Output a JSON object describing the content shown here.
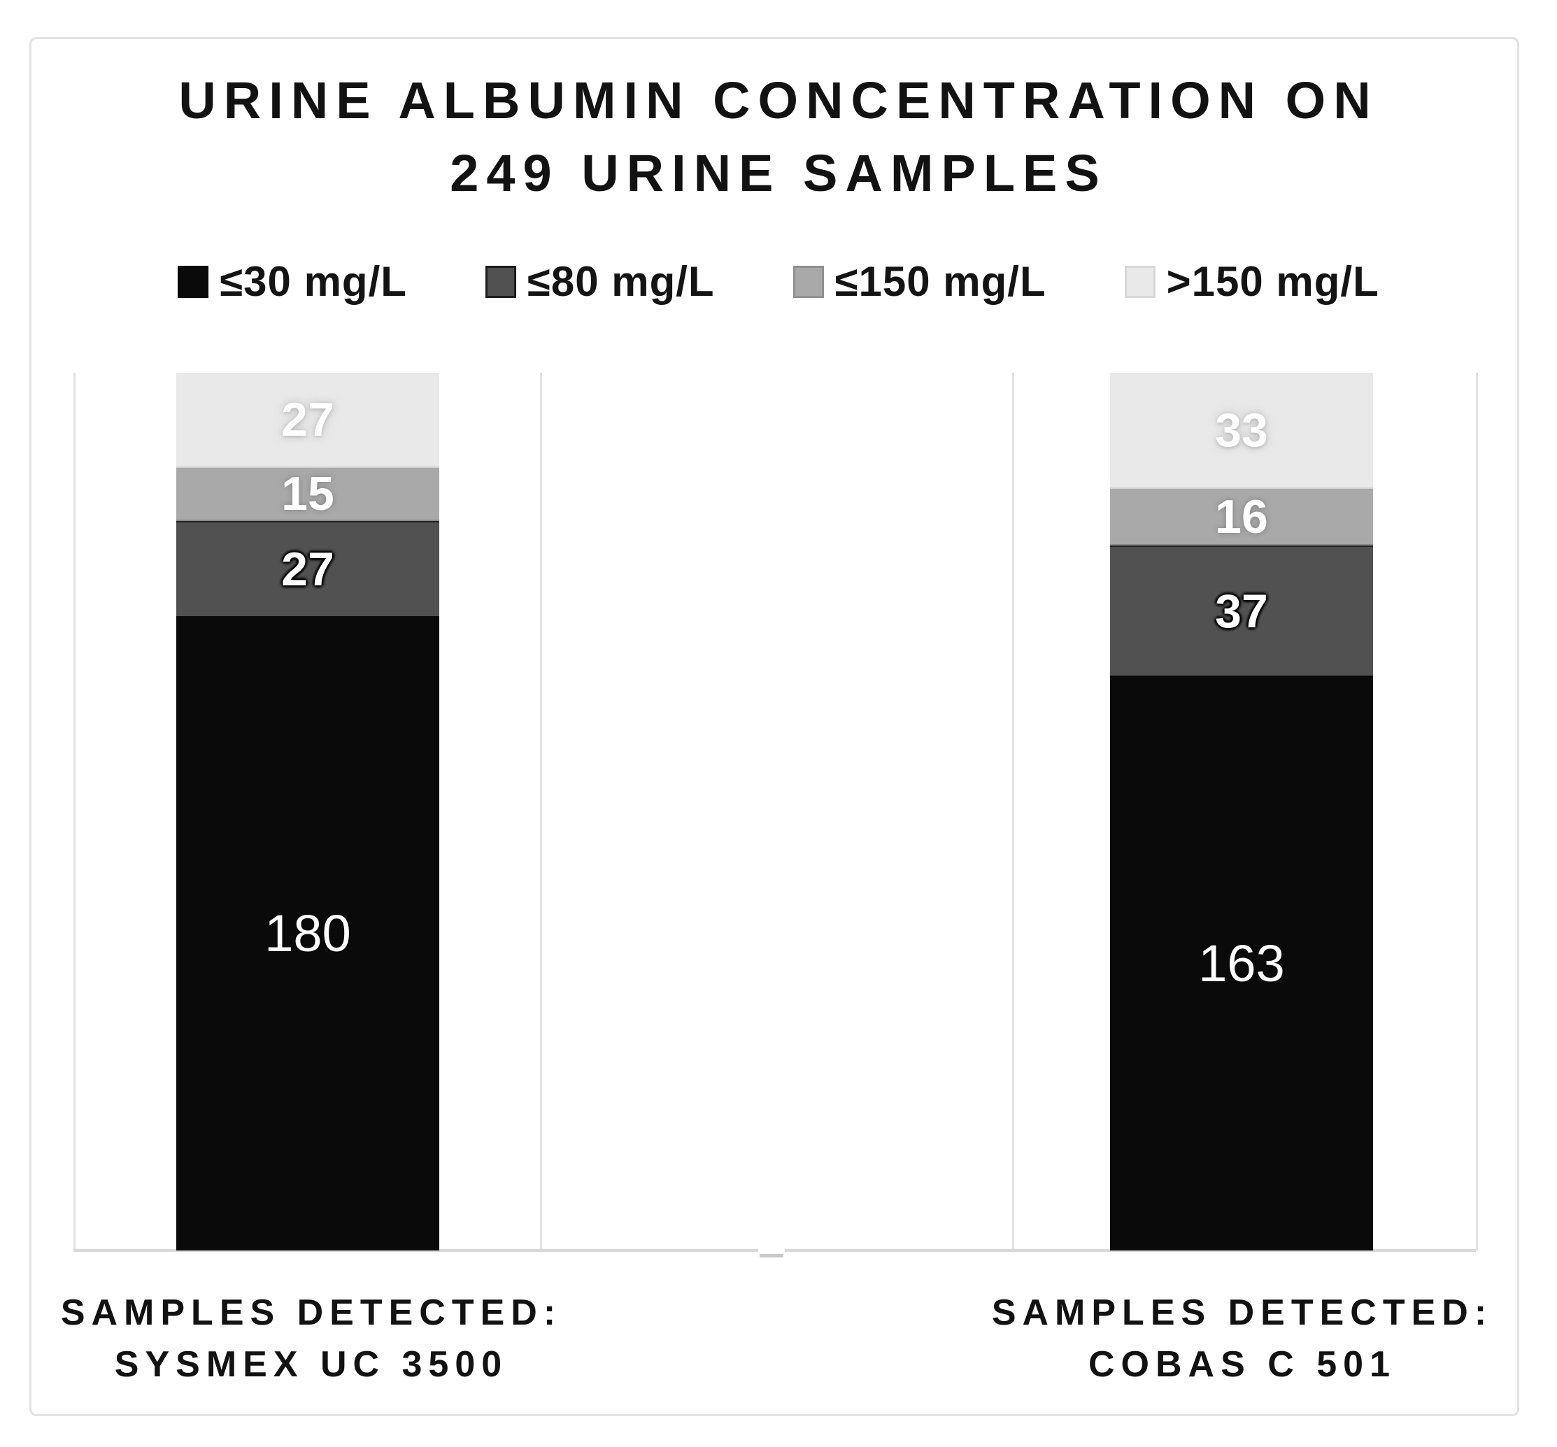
{
  "chart_data": {
    "type": "bar",
    "stacked": true,
    "title": "URINE ALBUMIN CONCENTRATION ON 249 URINE SAMPLES",
    "title_lines": [
      "URINE ALBUMIN CONCENTRATION ON",
      "249 URINE SAMPLES"
    ],
    "categories": [
      [
        "SAMPLES DETECTED:",
        "SYSMEX UC 3500"
      ],
      [
        "SAMPLES DETECTED:",
        "COBAS C 501"
      ]
    ],
    "series": [
      {
        "name": "≤30 mg/L",
        "color": "#0a0a0a",
        "values": [
          180,
          163
        ]
      },
      {
        "name": "≤80 mg/L",
        "color": "#515151",
        "values": [
          27,
          37
        ]
      },
      {
        "name": "≤150 mg/L",
        "color": "#a9a9a9",
        "values": [
          15,
          16
        ]
      },
      {
        "name": ">150 mg/L",
        "color": "#e9e9e9",
        "values": [
          27,
          33
        ]
      }
    ],
    "total_per_bar": 249,
    "ylim": [
      0,
      249
    ],
    "legend_position": "top",
    "grid": "vertical-only",
    "axis_color": "#d9d9d9",
    "gridline_color": "#e2e2e2"
  }
}
